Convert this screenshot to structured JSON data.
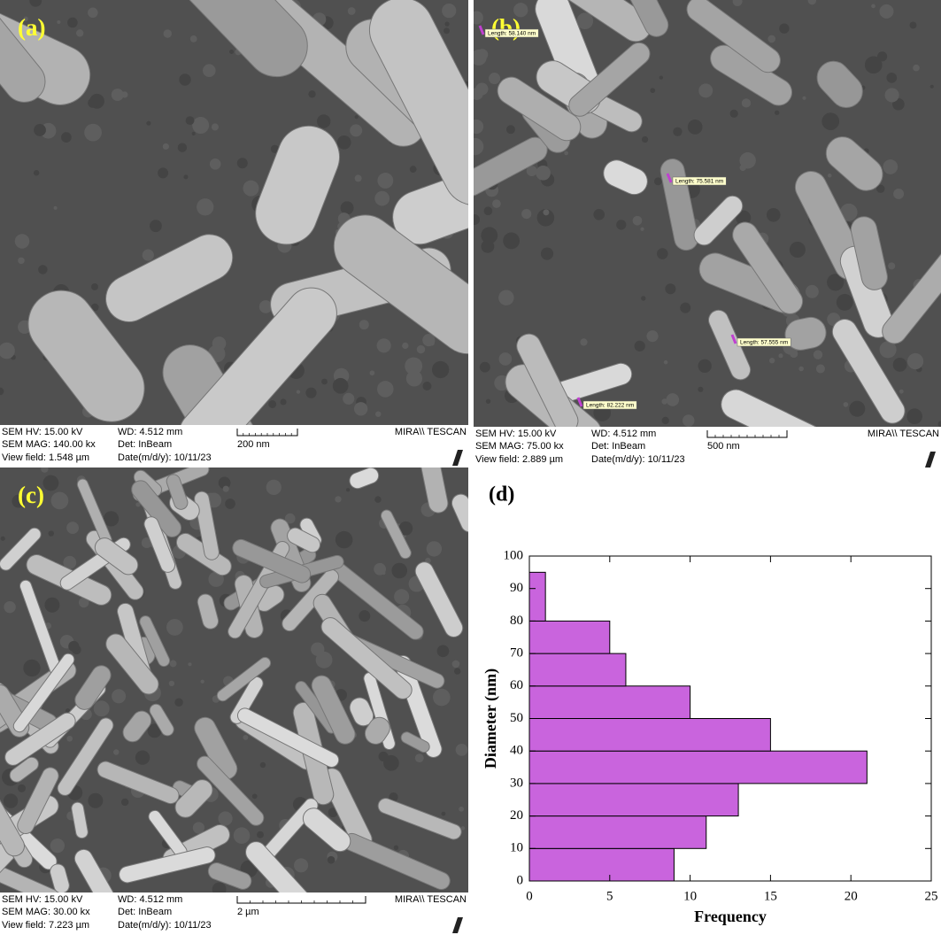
{
  "panels": [
    {
      "label": "(a)",
      "hv": "SEM HV: 15.00 kV",
      "wd": "WD: 4.512 mm",
      "mag": "SEM MAG: 140.00 kx",
      "det": "Det: InBeam",
      "view": "View field: 1.548 µm",
      "date": "Date(m/d/y): 10/11/23",
      "scale": "200 nm",
      "brand": "MIRA\\\\ TESCAN",
      "measurements": []
    },
    {
      "label": "(b)",
      "hv": "SEM HV: 15.00 kV",
      "wd": "WD: 4.512 mm",
      "mag": "SEM MAG: 75.00 kx",
      "det": "Det: InBeam",
      "view": "View field: 2.889 µm",
      "date": "Date(m/d/y): 10/11/23",
      "scale": "500 nm",
      "brand": "MIRA\\\\ TESCAN",
      "measurements": [
        "Length: 58.140 nm",
        "Length: 75.581 nm",
        "Length: 57.555 nm",
        "Length: 82.222 nm"
      ]
    },
    {
      "label": "(c)",
      "hv": "SEM HV: 15.00 kV",
      "wd": "WD: 4.512 mm",
      "mag": "SEM MAG: 30.00 kx",
      "det": "Det: InBeam",
      "view": "View field: 7.223 µm",
      "date": "Date(m/d/y): 10/11/23",
      "scale": "2 µm",
      "brand": "MIRA\\\\ TESCAN",
      "measurements": []
    }
  ],
  "chart_data": {
    "type": "histogram",
    "orientation": "horizontal",
    "title": "(d)",
    "xlabel": "Frequency",
    "ylabel": "Diameter (nm)",
    "bins": [
      0,
      10,
      20,
      30,
      40,
      50,
      60,
      70,
      80,
      95
    ],
    "values": [
      9,
      11,
      13,
      21,
      15,
      10,
      6,
      5,
      1
    ],
    "color": "#c964dd",
    "xlim": [
      0,
      25
    ],
    "xticks": [
      0,
      5,
      10,
      15,
      20,
      25
    ],
    "ylim": [
      0,
      100
    ],
    "yticks": [
      0,
      10,
      20,
      30,
      40,
      50,
      60,
      70,
      80,
      90,
      100
    ]
  }
}
